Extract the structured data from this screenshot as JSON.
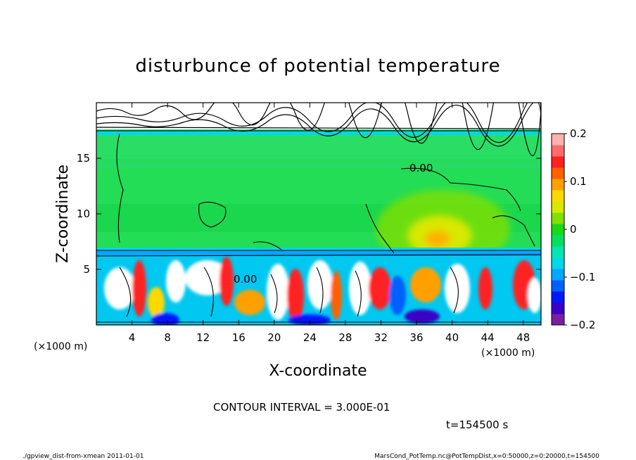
{
  "chart_data": {
    "type": "heatmap",
    "title": "disturbunce of potential temperature",
    "xlabel": "X-coordinate",
    "ylabel": "Z-coordinate",
    "x_unit": "(×1000 m)",
    "y_unit": "(×1000 m)",
    "xlim": [
      0,
      50
    ],
    "ylim": [
      0,
      20
    ],
    "x_ticks": [
      4,
      8,
      12,
      16,
      20,
      24,
      28,
      32,
      36,
      40,
      44,
      48
    ],
    "y_ticks": [
      5,
      10,
      15
    ],
    "contour_label": "0.00",
    "colorbar": {
      "min": -0.2,
      "max": 0.2,
      "ticks": [
        "0.2",
        "0.1",
        "0",
        "−0.1",
        "−0.2"
      ],
      "tick_values": [
        0.2,
        0.1,
        0,
        -0.1,
        -0.2
      ],
      "colors": [
        "#7b1fa2",
        "#3a00c8",
        "#0018ff",
        "#0060ff",
        "#00a8ff",
        "#00d8e8",
        "#00e8b0",
        "#00e060",
        "#18d818",
        "#80e000",
        "#d8e800",
        "#ffd800",
        "#ffa000",
        "#ff6000",
        "#ff2020",
        "#ff6a6a",
        "#ffb0b0"
      ]
    },
    "contour_interval_text": "CONTOUR INTERVAL = 3.000E-01",
    "time_text": "t=154500 s"
  },
  "footer": {
    "left": "./gpview_dist-from-xmean  2011-01-01",
    "right": "MarsCond_PotTemp.nc@PotTempDist,x=0:50000,z=0:20000,t=154500"
  }
}
